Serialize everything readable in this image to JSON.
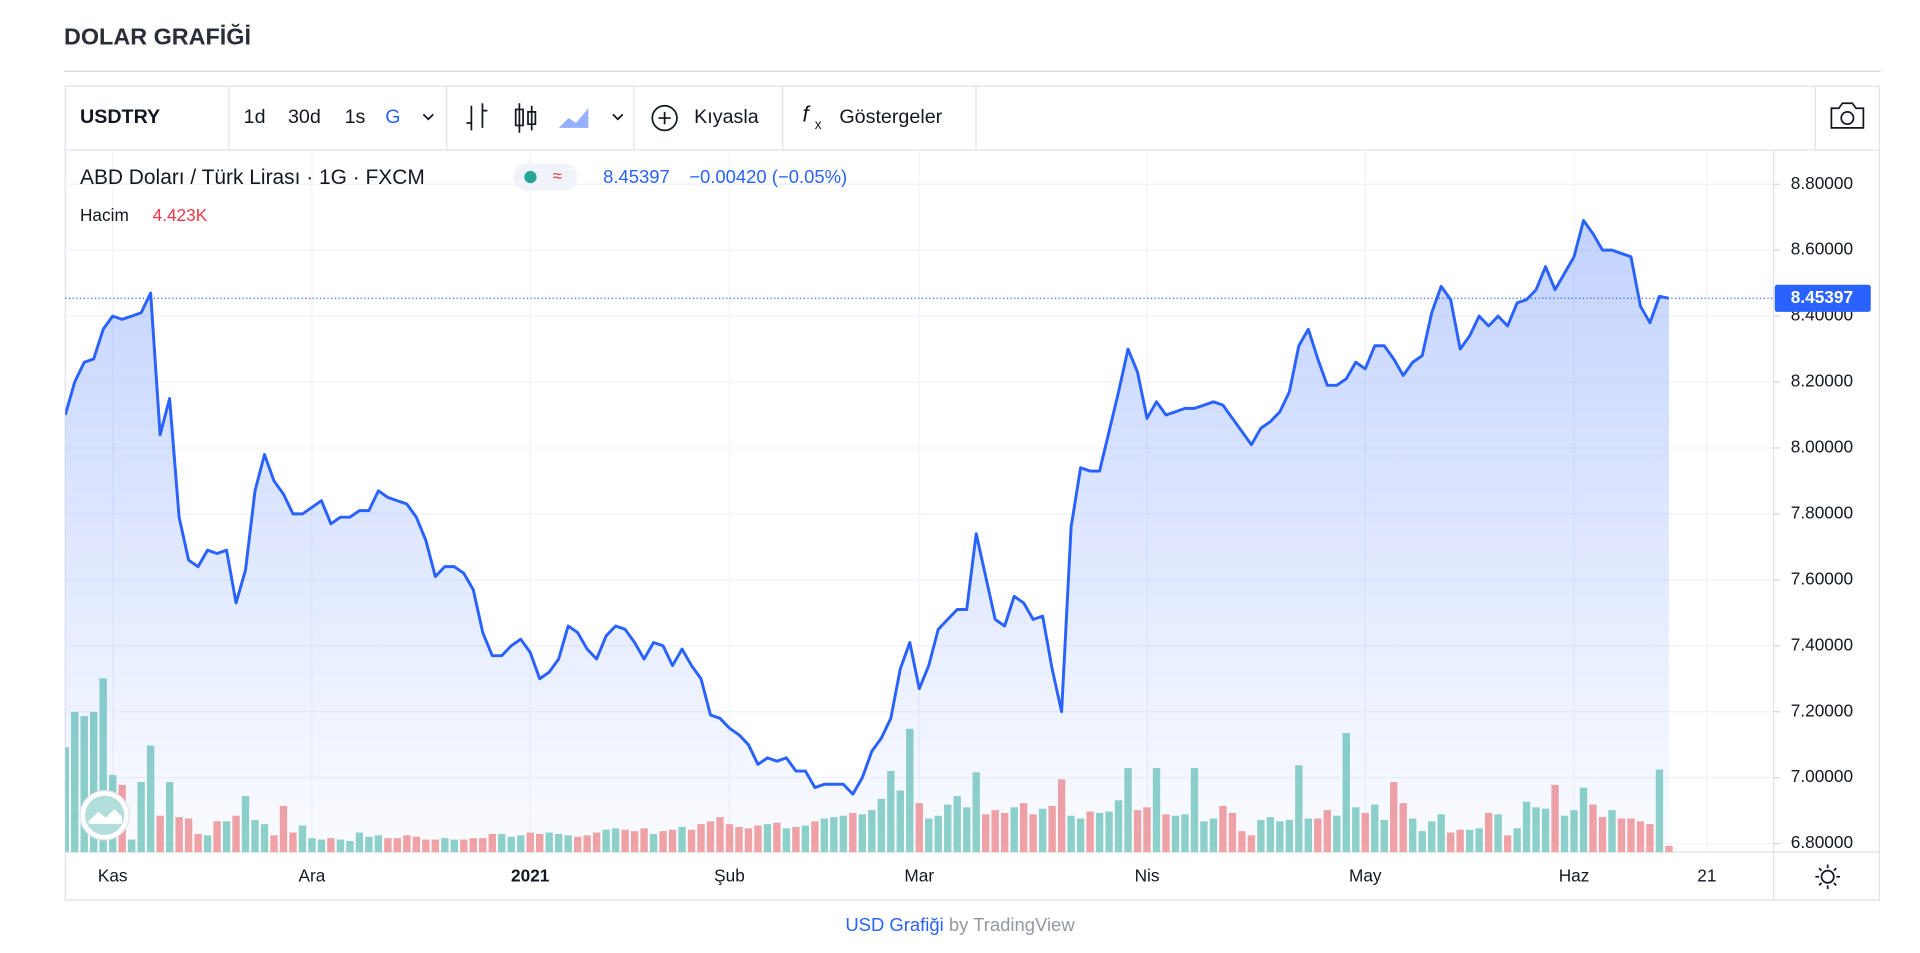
{
  "header": {
    "title": "DOLAR GRAFİĞİ"
  },
  "toolbar": {
    "symbol": "USDTRY",
    "ranges": [
      "1d",
      "30d",
      "1s",
      "G"
    ],
    "compare": "Kıyasla",
    "indicators": "Göstergeler"
  },
  "legend": {
    "change": "−0.00420 (−0.05%)"
  },
  "footer": {
    "link": "USD Grafiği",
    "by": "by TradingView"
  },
  "chart_data": {
    "type": "area",
    "categories": [
      null,
      null,
      null,
      null,
      null,
      "Kas",
      null,
      null,
      null,
      null,
      null,
      null,
      null,
      null,
      null,
      null,
      null,
      null,
      null,
      null,
      null,
      null,
      null,
      null,
      null,
      null,
      "Ara",
      null,
      null,
      null,
      null,
      null,
      null,
      null,
      null,
      null,
      null,
      null,
      null,
      null,
      null,
      null,
      null,
      null,
      null,
      null,
      null,
      null,
      null,
      "2021",
      null,
      null,
      null,
      null,
      null,
      null,
      null,
      null,
      null,
      null,
      null,
      null,
      null,
      null,
      null,
      null,
      null,
      null,
      null,
      null,
      "Şub",
      null,
      null,
      null,
      null,
      null,
      null,
      null,
      null,
      null,
      null,
      null,
      null,
      null,
      null,
      null,
      null,
      null,
      null,
      null,
      "Mar",
      null,
      null,
      null,
      null,
      null,
      null,
      null,
      null,
      null,
      null,
      null,
      null,
      null,
      null,
      null,
      null,
      null,
      null,
      null,
      null,
      null,
      null,
      null,
      "Nis",
      null,
      null,
      null,
      null,
      null,
      null,
      null,
      null,
      null,
      null,
      null,
      null,
      null,
      null,
      null,
      null,
      null,
      null,
      null,
      null,
      null,
      null,
      "May",
      null,
      null,
      null,
      null,
      null,
      null,
      null,
      null,
      null,
      null,
      null,
      null,
      null,
      null,
      null,
      null,
      null,
      null,
      null,
      null,
      null,
      "Haz",
      null,
      null,
      null,
      null,
      null,
      null,
      null,
      null,
      null,
      null,
      null,
      null,
      null,
      "21"
    ],
    "series": [
      {
        "name": "ABD Doları / Türk Lirası · 1G · FXCM",
        "color": "#2962ff",
        "values": [
          8.1,
          8.2,
          8.26,
          8.27,
          8.36,
          8.4,
          8.39,
          8.4,
          8.41,
          8.47,
          8.04,
          8.15,
          7.79,
          7.66,
          7.64,
          7.69,
          7.68,
          7.69,
          7.53,
          7.63,
          7.87,
          7.98,
          7.9,
          7.86,
          7.8,
          7.8,
          7.82,
          7.84,
          7.77,
          7.79,
          7.79,
          7.81,
          7.81,
          7.87,
          7.85,
          7.84,
          7.83,
          7.79,
          7.72,
          7.61,
          7.64,
          7.64,
          7.62,
          7.57,
          7.44,
          7.37,
          7.37,
          7.4,
          7.42,
          7.38,
          7.3,
          7.32,
          7.36,
          7.46,
          7.44,
          7.39,
          7.36,
          7.43,
          7.46,
          7.45,
          7.41,
          7.36,
          7.41,
          7.4,
          7.34,
          7.39,
          7.34,
          7.3,
          7.19,
          7.18,
          7.15,
          7.13,
          7.1,
          7.04,
          7.06,
          7.05,
          7.06,
          7.02,
          7.02,
          6.97,
          6.98,
          6.98,
          6.98,
          6.95,
          7.0,
          7.08,
          7.12,
          7.18,
          7.33,
          7.41,
          7.27,
          7.34,
          7.45,
          7.48,
          7.51,
          7.51,
          7.74,
          7.61,
          7.48,
          7.46,
          7.55,
          7.53,
          7.48,
          7.49,
          7.33,
          7.2,
          7.76,
          7.94,
          7.93,
          7.93,
          8.05,
          8.17,
          8.3,
          8.23,
          8.09,
          8.14,
          8.1,
          8.11,
          8.12,
          8.12,
          8.13,
          8.14,
          8.13,
          8.09,
          8.05,
          8.01,
          8.06,
          8.08,
          8.11,
          8.17,
          8.31,
          8.36,
          8.27,
          8.19,
          8.19,
          8.21,
          8.26,
          8.24,
          8.31,
          8.31,
          8.27,
          8.22,
          8.26,
          8.28,
          8.41,
          8.49,
          8.45,
          8.3,
          8.34,
          8.4,
          8.37,
          8.4,
          8.37,
          8.44,
          8.45,
          8.48,
          8.55,
          8.48,
          8.53,
          8.58,
          8.69,
          8.65,
          8.6,
          8.6,
          8.59,
          8.58,
          8.43,
          8.38,
          8.46,
          8.45397,
          null,
          null,
          null,
          null
        ]
      }
    ],
    "volume": {
      "name": "Hacim",
      "value_label": "4.423K",
      "up_color": "#8fd3c8",
      "down_color": "#f4a3a3",
      "ylim": [
        0,
        500
      ],
      "values": [
        75,
        100,
        97,
        100,
        124,
        55,
        48,
        9,
        50,
        76,
        26,
        50,
        25,
        24,
        13,
        12,
        22,
        22,
        26,
        40,
        23,
        20,
        12,
        33,
        14,
        19,
        10,
        9,
        10,
        9,
        8,
        14,
        11,
        12,
        10,
        10,
        12,
        11,
        9,
        9,
        10,
        9,
        9,
        10,
        10,
        13,
        13,
        11,
        12,
        14,
        13,
        14,
        13,
        12,
        11,
        12,
        14,
        16,
        17,
        16,
        15,
        17,
        13,
        15,
        16,
        18,
        16,
        20,
        22,
        25,
        20,
        18,
        17,
        19,
        20,
        21,
        17,
        18,
        19,
        22,
        24,
        25,
        26,
        28,
        27,
        30,
        38,
        58,
        44,
        88,
        35,
        24,
        26,
        34,
        40,
        32,
        57,
        27,
        30,
        28,
        32,
        35,
        27,
        31,
        33,
        52,
        26,
        24,
        29,
        28,
        29,
        37,
        60,
        30,
        32,
        60,
        27,
        26,
        27,
        60,
        22,
        24,
        33,
        28,
        15,
        12,
        23,
        25,
        22,
        23,
        62,
        24,
        24,
        30,
        26,
        85,
        32,
        28,
        34,
        23,
        50,
        35,
        24,
        15,
        22,
        27,
        14,
        16,
        16,
        17,
        28,
        27,
        12,
        17,
        36,
        32,
        31,
        48,
        26,
        30,
        46,
        34,
        25,
        30,
        24,
        24,
        22,
        20,
        59,
        4.423,
        null,
        null,
        null,
        null
      ]
    },
    "ylim": [
      6.774,
      8.9
    ],
    "yticks": [
      {
        "value": 6.8,
        "label": "6.80000"
      },
      {
        "value": 7.0,
        "label": "7.00000"
      },
      {
        "value": 7.2,
        "label": "7.20000"
      },
      {
        "value": 7.4,
        "label": "7.40000"
      },
      {
        "value": 7.6,
        "label": "7.60000"
      },
      {
        "value": 7.8,
        "label": "7.80000"
      },
      {
        "value": 8.0,
        "label": "8.00000"
      },
      {
        "value": 8.2,
        "label": "8.20000"
      },
      {
        "value": 8.4,
        "label": "8.40000"
      },
      {
        "value": 8.6,
        "label": "8.60000"
      },
      {
        "value": 8.8,
        "label": "8.80000"
      }
    ],
    "grid": true
  }
}
